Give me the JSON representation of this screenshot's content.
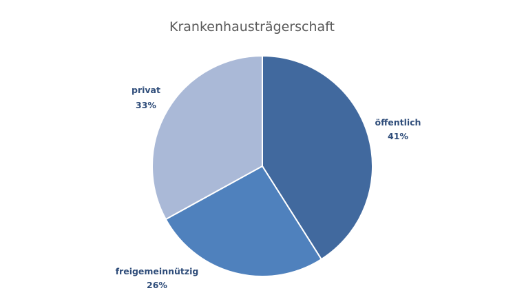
{
  "chart_data": {
    "type": "pie",
    "title": "Krankenhausträgerschaft",
    "slices": [
      {
        "label": "öffentlich",
        "value": 41,
        "value_label": "41%",
        "color": "#41699e"
      },
      {
        "label": "freigemeinnützig",
        "value": 26,
        "value_label": "26%",
        "color": "#4f81bd"
      },
      {
        "label": "privat",
        "value": 33,
        "value_label": "33%",
        "color": "#aab9d7"
      }
    ],
    "start_angle": "12 o'clock",
    "direction": "clockwise",
    "slice_border_color": "#ffffff",
    "legend": "none",
    "data_labels": "outside"
  }
}
